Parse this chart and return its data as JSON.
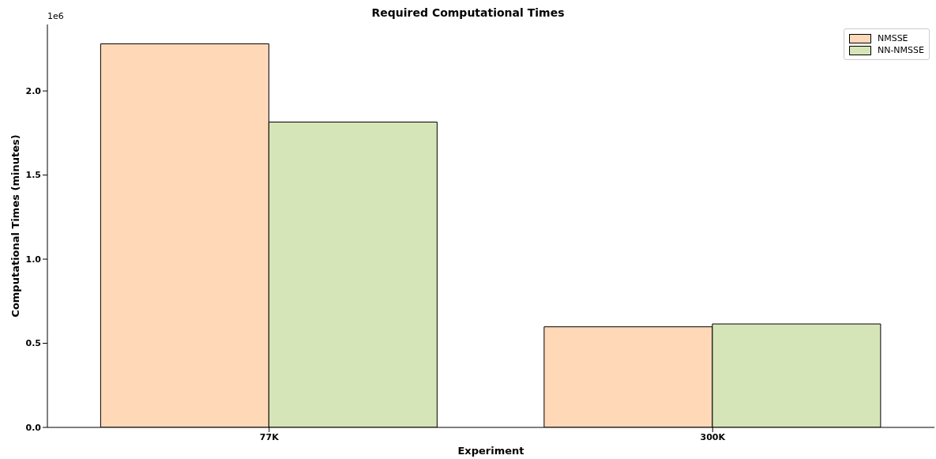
{
  "chart_data": {
    "type": "bar",
    "title": "Required Computational Times",
    "xlabel": "Experiment",
    "ylabel": "Computational Times (minutes)",
    "categories": [
      "77K",
      "300K"
    ],
    "series": [
      {
        "name": "NMSSE",
        "color": "#ffd8b8",
        "values": [
          2.28,
          0.598
        ]
      },
      {
        "name": "NN-NMSSE",
        "color": "#d6e5b7",
        "values": [
          1.815,
          0.615
        ]
      }
    ],
    "ylim": [
      0,
      2.395
    ],
    "yticks": [
      {
        "value": 0,
        "label": "0.0"
      },
      {
        "value": 0.5,
        "label": "0.5"
      },
      {
        "value": 1,
        "label": "1.0"
      },
      {
        "value": 1.5,
        "label": "1.5"
      },
      {
        "value": 2,
        "label": "2.0"
      }
    ],
    "annotations": [
      "1e6"
    ],
    "legend": "top right"
  }
}
